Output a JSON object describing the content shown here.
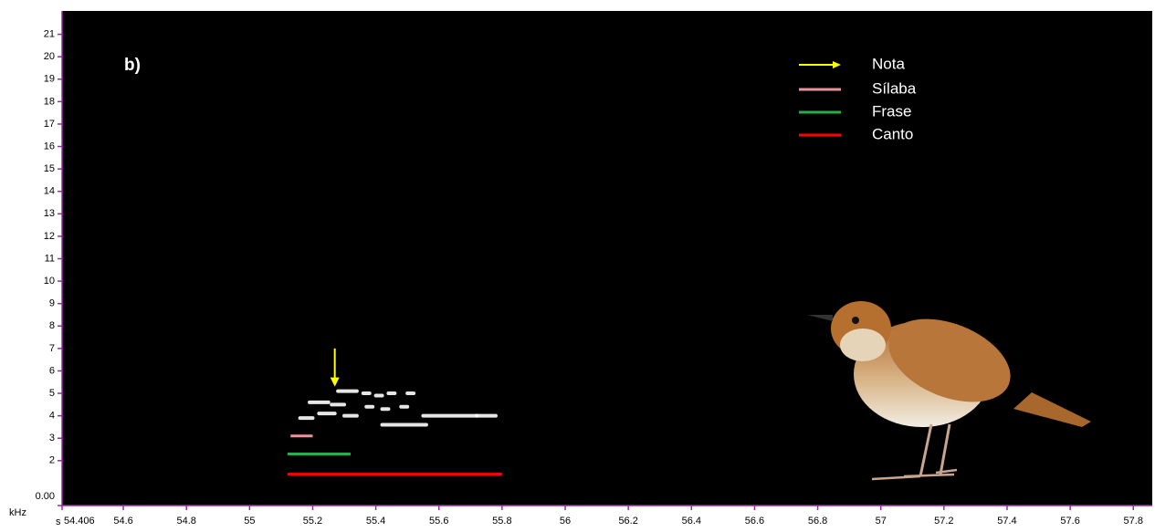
{
  "chart_data": {
    "type": "spectrogram",
    "annotation": "b)",
    "xlabel": "s",
    "ylabel": "kHz",
    "xlim": [
      54.406,
      57.86
    ],
    "ylim": [
      0,
      22
    ],
    "xticks": [
      54.406,
      54.6,
      54.8,
      55,
      55.2,
      55.4,
      55.6,
      55.8,
      56,
      56.2,
      56.4,
      56.6,
      56.8,
      57,
      57.2,
      57.4,
      57.6,
      57.8
    ],
    "yticks": [
      {
        "value": 0,
        "label": "0.00"
      },
      2,
      3,
      4,
      5,
      6,
      7,
      8,
      9,
      10,
      11,
      12,
      13,
      14,
      15,
      16,
      17,
      18,
      19,
      20,
      21
    ],
    "spectrogram": [
      {
        "t": [
          55.28,
          55.34
        ],
        "f": 5.1
      },
      {
        "t": [
          55.19,
          55.25
        ],
        "f": 4.6
      },
      {
        "t": [
          55.26,
          55.3
        ],
        "f": 4.5
      },
      {
        "t": [
          55.16,
          55.2
        ],
        "f": 3.9
      },
      {
        "t": [
          55.22,
          55.27
        ],
        "f": 4.1
      },
      {
        "t": [
          55.3,
          55.34
        ],
        "f": 4.0
      },
      {
        "t": [
          55.36,
          55.38
        ],
        "f": 5.0
      },
      {
        "t": [
          55.4,
          55.42
        ],
        "f": 4.9
      },
      {
        "t": [
          55.44,
          55.46
        ],
        "f": 5.0
      },
      {
        "t": [
          55.5,
          55.52
        ],
        "f": 5.0
      },
      {
        "t": [
          55.37,
          55.39
        ],
        "f": 4.4
      },
      {
        "t": [
          55.42,
          55.44
        ],
        "f": 4.3
      },
      {
        "t": [
          55.48,
          55.5
        ],
        "f": 4.4
      },
      {
        "t": [
          55.42,
          55.56
        ],
        "f": 3.6
      },
      {
        "t": [
          55.55,
          55.72
        ],
        "f": 4.0
      },
      {
        "t": [
          55.72,
          55.78
        ],
        "f": 4.0
      }
    ],
    "arrow": {
      "name": "Nota",
      "color": "#ffff00",
      "x": 55.27,
      "y": [
        7,
        5.3
      ]
    },
    "ranges": [
      {
        "name": "Sílaba",
        "color": "#e8949c",
        "x": [
          55.13,
          55.2
        ],
        "y": 3.1
      },
      {
        "name": "Frase",
        "color": "#22b04a",
        "x": [
          55.12,
          55.32
        ],
        "y": 2.3
      },
      {
        "name": "Canto",
        "color": "#ff0000",
        "x": [
          55.12,
          55.8
        ],
        "y": 1.4
      }
    ]
  }
}
